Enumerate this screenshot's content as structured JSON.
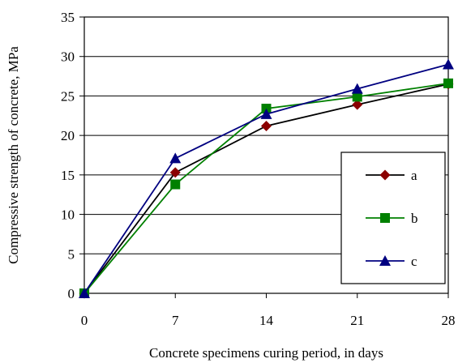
{
  "chart_data": {
    "type": "line",
    "title": "",
    "xlabel": "Concrete specimens curing period, in days",
    "ylabel": "Compressive strength of concrete, MPa",
    "x": [
      0,
      7,
      14,
      21,
      28
    ],
    "xticks": [
      "0",
      "7",
      "14",
      "21",
      "28"
    ],
    "yticks": [
      "0",
      "5",
      "10",
      "15",
      "20",
      "25",
      "30",
      "35"
    ],
    "xlim": [
      0,
      28
    ],
    "ylim": [
      0,
      35
    ],
    "grid": "horizontal",
    "legend_position": "bottom-right",
    "series": [
      {
        "name": "a",
        "values": [
          0,
          15.3,
          21.2,
          23.9,
          26.5
        ],
        "color": "#000000",
        "marker": "diamond",
        "marker_color": "#8b0000"
      },
      {
        "name": "b",
        "values": [
          0,
          13.8,
          23.4,
          24.9,
          26.6
        ],
        "color": "#008000",
        "marker": "square",
        "marker_color": "#008000"
      },
      {
        "name": "c",
        "values": [
          0,
          17.1,
          22.7,
          25.9,
          29.0
        ],
        "color": "#000080",
        "marker": "triangle",
        "marker_color": "#000080"
      }
    ]
  }
}
